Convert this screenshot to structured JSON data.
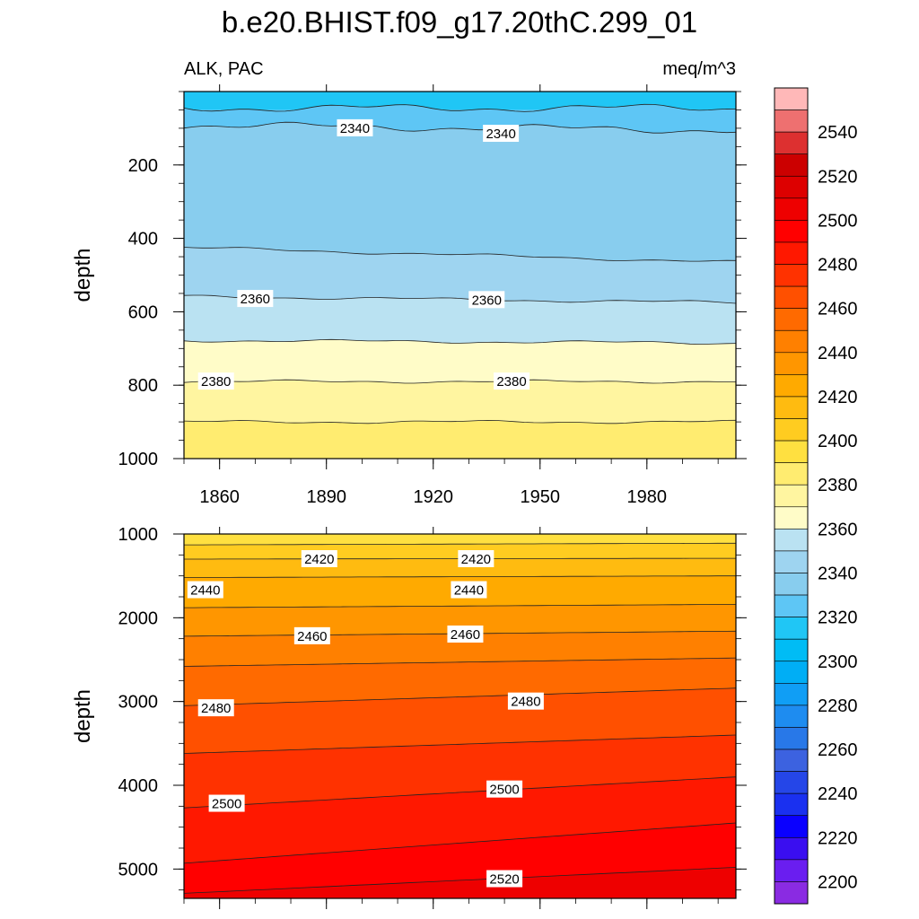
{
  "title": "b.e20.BHIST.f09_g17.20thC.299_01",
  "chart_data": {
    "type": "contour",
    "variable": "ALK, PAC",
    "units": "meq/m^3",
    "x": {
      "min": 1850,
      "max": 2005,
      "ticks": [
        1860,
        1890,
        1920,
        1950,
        1980
      ]
    },
    "colorbar": {
      "levels": [
        2200,
        2210,
        2220,
        2230,
        2240,
        2250,
        2260,
        2270,
        2280,
        2290,
        2300,
        2310,
        2320,
        2330,
        2340,
        2350,
        2360,
        2370,
        2380,
        2390,
        2400,
        2410,
        2420,
        2430,
        2440,
        2450,
        2460,
        2470,
        2480,
        2490,
        2500,
        2510,
        2520,
        2530,
        2540,
        2550
      ],
      "labels": [
        "2200",
        "2220",
        "2240",
        "2260",
        "2280",
        "2300",
        "2320",
        "2340",
        "2360",
        "2380",
        "2400",
        "2420",
        "2440",
        "2460",
        "2480",
        "2500",
        "2520",
        "2540"
      ],
      "colors": [
        "#8a2be2",
        "#6a1ef0",
        "#3a0ef0",
        "#0a00ff",
        "#1a30f0",
        "#2546e8",
        "#3c62e0",
        "#2878e8",
        "#1e8cf0",
        "#109ef5",
        "#00aef5",
        "#00bcf5",
        "#20c6f5",
        "#5ec6f5",
        "#88cdee",
        "#9ed4f0",
        "#bae2f2",
        "#fffcc8",
        "#fff5a0",
        "#ffec70",
        "#ffe040",
        "#ffcc20",
        "#ffbb10",
        "#ffaa00",
        "#ff9600",
        "#ff8000",
        "#ff6a00",
        "#ff5000",
        "#ff3200",
        "#ff1800",
        "#ff0000",
        "#ee0000",
        "#dd0000",
        "#cc0000",
        "#dd3030",
        "#ee7070",
        "#ffb8b8"
      ]
    },
    "panels": [
      {
        "name": "upper",
        "ylabel": "depth",
        "ylim": [
          0,
          1000
        ],
        "yticks": [
          "200",
          "400",
          "600",
          "800",
          "1000"
        ],
        "ytick_values": [
          200,
          400,
          600,
          800,
          1000
        ],
        "bands": [
          {
            "top": 0,
            "bottom": 50,
            "color": "#20c6f5"
          },
          {
            "top": 50,
            "bottom": 90,
            "color": "#5ec6f5"
          },
          {
            "top": 90,
            "bottom": 430,
            "color": "#88cdee"
          },
          {
            "top": 430,
            "bottom": 560,
            "color": "#9ed4f0"
          },
          {
            "top": 560,
            "bottom": 680,
            "color": "#bae2f2"
          },
          {
            "top": 680,
            "bottom": 790,
            "color": "#fffcc8"
          },
          {
            "top": 790,
            "bottom": 900,
            "color": "#fff5a0"
          },
          {
            "top": 900,
            "bottom": 1000,
            "color": "#ffec70"
          }
        ],
        "contours": [
          {
            "start": 45,
            "end": 45
          },
          {
            "start": 92,
            "end": 105
          },
          {
            "start": 425,
            "end": 465
          },
          {
            "start": 558,
            "end": 575
          },
          {
            "start": 678,
            "end": 685
          },
          {
            "start": 790,
            "end": 790
          },
          {
            "start": 900,
            "end": 900
          }
        ],
        "labels": [
          {
            "text": "2340",
            "x": 1898,
            "depth": 100
          },
          {
            "text": "2340",
            "x": 1939,
            "depth": 115
          },
          {
            "text": "2360",
            "x": 1870,
            "depth": 565
          },
          {
            "text": "2360",
            "x": 1935,
            "depth": 568
          },
          {
            "text": "2380",
            "x": 1859,
            "depth": 790
          },
          {
            "text": "2380",
            "x": 1942,
            "depth": 790
          }
        ]
      },
      {
        "name": "lower",
        "ylabel": "depth",
        "ylim": [
          1000,
          5350
        ],
        "yticks": [
          "1000",
          "2000",
          "3000",
          "4000",
          "5000"
        ],
        "ytick_values": [
          1000,
          2000,
          3000,
          4000,
          5000
        ],
        "bands": [
          {
            "top": 1000,
            "bottom": 1130,
            "color": "#ffe040"
          },
          {
            "top": 1130,
            "bottom": 1300,
            "color": "#ffcc20"
          },
          {
            "top": 1300,
            "bottom": 1520,
            "color": "#ffbb10"
          },
          {
            "top": 1520,
            "bottom": 1880,
            "color": "#ffaa00"
          },
          {
            "top": 1880,
            "bottom": 2220,
            "color": "#ff9600"
          },
          {
            "top": 2220,
            "bottom": 2580,
            "color": "#ff8000"
          },
          {
            "top": 2580,
            "bottom": 3050,
            "color": "#ff6a00"
          },
          {
            "top": 3050,
            "bottom": 3600,
            "color": "#ff5000"
          },
          {
            "top": 3600,
            "bottom": 4250,
            "color": "#ff3200"
          },
          {
            "top": 4250,
            "bottom": 4900,
            "color": "#ff1800"
          },
          {
            "top": 4900,
            "bottom": 5270,
            "color": "#ff0000"
          },
          {
            "top": 5270,
            "bottom": 5350,
            "color": "#ee0000"
          }
        ],
        "contours": [
          {
            "start": 1130,
            "end": 1110
          },
          {
            "start": 1300,
            "end": 1290
          },
          {
            "start": 1520,
            "end": 1500
          },
          {
            "start": 1880,
            "end": 1840
          },
          {
            "start": 2220,
            "end": 2160
          },
          {
            "start": 2580,
            "end": 2480
          },
          {
            "start": 3050,
            "end": 2840
          },
          {
            "start": 3620,
            "end": 3400
          },
          {
            "start": 4270,
            "end": 3900
          },
          {
            "start": 4930,
            "end": 4450
          },
          {
            "start": 5290,
            "end": 4980
          }
        ],
        "labels": [
          {
            "text": "2420",
            "x": 1888,
            "depth": 1300
          },
          {
            "text": "2420",
            "x": 1932,
            "depth": 1300
          },
          {
            "text": "2440",
            "x": 1856,
            "depth": 1670
          },
          {
            "text": "2440",
            "x": 1930,
            "depth": 1670
          },
          {
            "text": "2460",
            "x": 1886,
            "depth": 2220
          },
          {
            "text": "2460",
            "x": 1929,
            "depth": 2200
          },
          {
            "text": "2480",
            "x": 1859,
            "depth": 3080
          },
          {
            "text": "2480",
            "x": 1946,
            "depth": 3000
          },
          {
            "text": "2500",
            "x": 1862,
            "depth": 4220
          },
          {
            "text": "2500",
            "x": 1940,
            "depth": 4050
          },
          {
            "text": "2520",
            "x": 1940,
            "depth": 5120
          }
        ]
      }
    ]
  }
}
